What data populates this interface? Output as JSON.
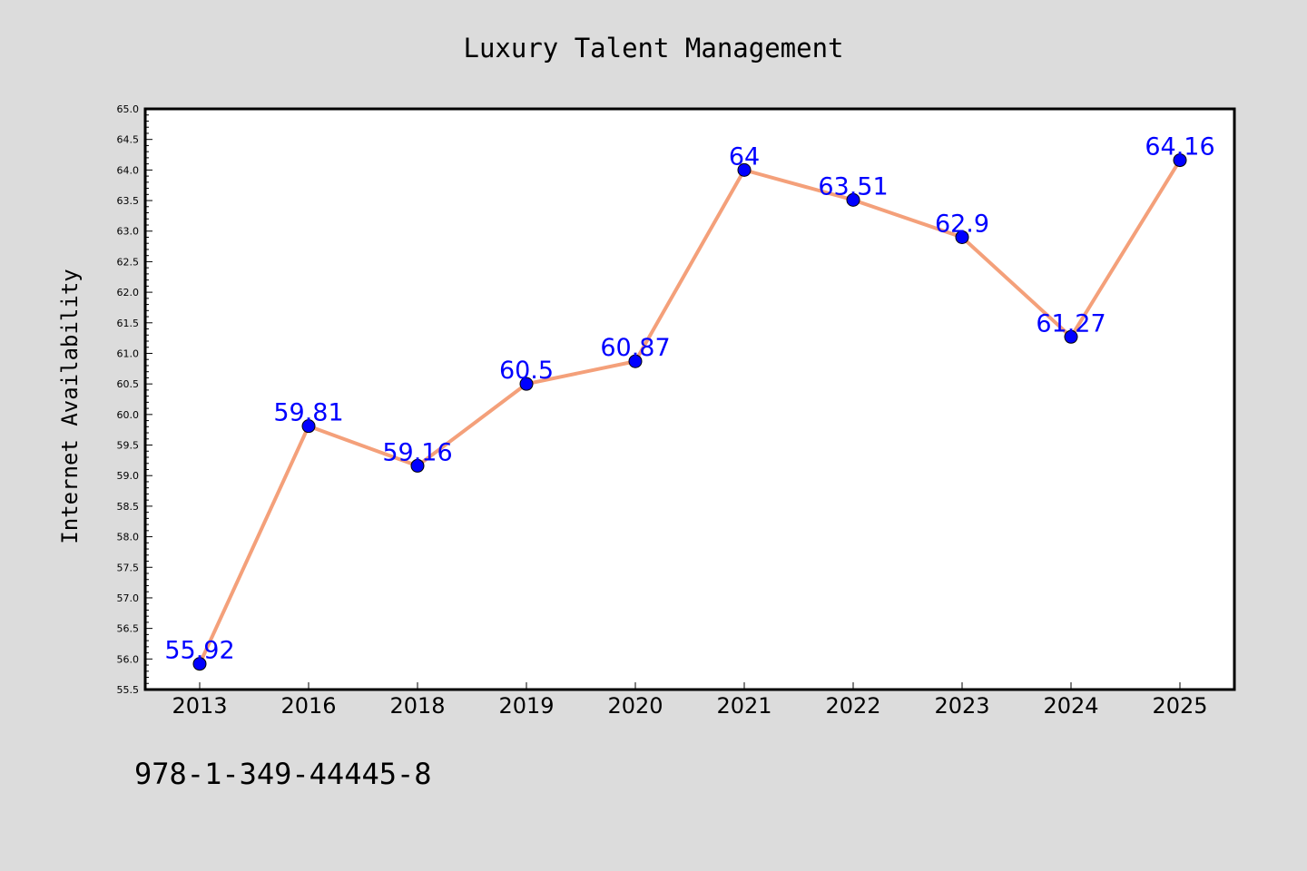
{
  "chart_data": {
    "type": "line",
    "title": "Luxury Talent Management",
    "xlabel": "",
    "ylabel": "Internet Availability",
    "categories": [
      "2013",
      "2016",
      "2018",
      "2019",
      "2020",
      "2021",
      "2022",
      "2023",
      "2024",
      "2025"
    ],
    "series": [
      {
        "values": [
          55.92,
          59.81,
          59.16,
          60.5,
          60.87,
          64,
          63.51,
          62.9,
          61.27,
          64.16
        ],
        "labels": [
          "55.92",
          "59.81",
          "59.16",
          "60.5",
          "60.87",
          "64",
          "63.51",
          "62.9",
          "61.27",
          "64.16"
        ],
        "line_color": "#f4a07a",
        "marker_color": "#0000ff"
      }
    ],
    "ylim": [
      55.5,
      65.0
    ],
    "yticks": [
      "55.5",
      "56.0",
      "56.5",
      "57.0",
      "57.5",
      "58.0",
      "58.5",
      "59.0",
      "59.5",
      "60.0",
      "60.5",
      "61.0",
      "61.5",
      "62.0",
      "62.5",
      "63.0",
      "63.5",
      "64.0",
      "64.5",
      "65.0"
    ],
    "grid": false,
    "legend": "none"
  },
  "footer": {
    "isbn": "978-1-349-44445-8"
  },
  "colors": {
    "background": "#dcdcdc",
    "plot_area": "#ffffff",
    "label_text": "#0000ff"
  }
}
